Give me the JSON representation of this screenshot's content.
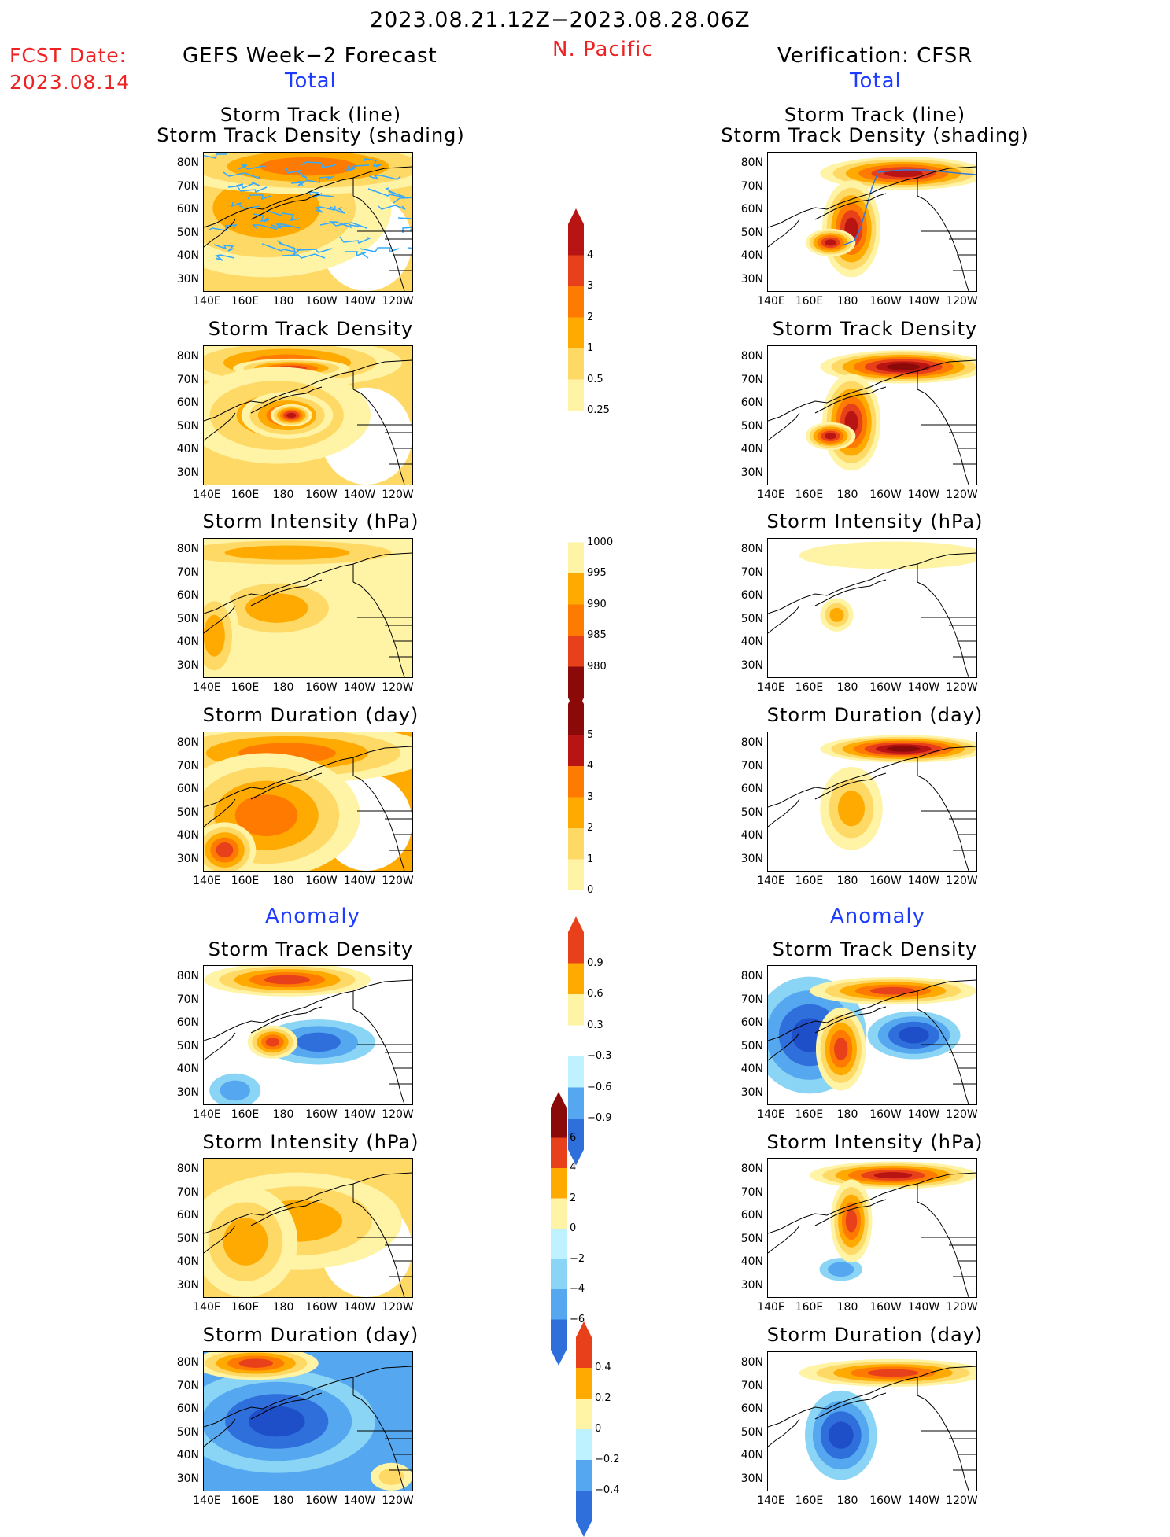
{
  "header": {
    "date_range": "2023.08.21.12Z−2023.08.28.06Z",
    "fcst_label": "FCST Date:",
    "fcst_date": "2023.08.14",
    "left_title": "GEFS Week−2 Forecast",
    "region": "N. Pacific",
    "right_title": "Verification: CFSR",
    "total_left": "Total",
    "total_right": "Total",
    "anomaly_left": "Anomaly",
    "anomaly_right": "Anomaly"
  },
  "panel_titles": {
    "track_line": "Storm Track (line)",
    "track_shading": "Storm Track Density (shading)",
    "density": "Storm Track Density",
    "intensity": "Storm Intensity (hPa)",
    "duration": "Storm Duration (day)"
  },
  "axes": {
    "lat_labels": [
      "80N",
      "70N",
      "60N",
      "50N",
      "40N",
      "30N"
    ],
    "lon_labels": [
      "140E",
      "160E",
      "180",
      "160W",
      "140W",
      "120W"
    ]
  },
  "colorbars": {
    "density": [
      "4",
      "3",
      "2",
      "1",
      "0.5",
      "0.25"
    ],
    "intensity": [
      "1000",
      "995",
      "990",
      "985",
      "980"
    ],
    "duration": [
      "5",
      "4",
      "3",
      "2",
      "1",
      "0"
    ],
    "density_anom": [
      "0.9",
      "0.6",
      "0.3",
      "−0.3",
      "−0.6",
      "−0.9"
    ],
    "intensity_anom": [
      "6",
      "4",
      "2",
      "0",
      "−2",
      "−4",
      "−6"
    ],
    "duration_anom": [
      "0.4",
      "0.2",
      "0",
      "−0.2",
      "−0.4"
    ]
  },
  "colors": {
    "warm": [
      "#fff3a6",
      "#ffd966",
      "#ffaa00",
      "#ff7a00",
      "#e8401a",
      "#b81414",
      "#8a0a0a"
    ],
    "cool": [
      "#bff2ff",
      "#8ad4f5",
      "#55a7ef",
      "#2f6fdc",
      "#1e4fc8"
    ],
    "track_line": "#33aaff",
    "title_red": "#ee2222",
    "title_blue": "#1e3cff"
  }
}
